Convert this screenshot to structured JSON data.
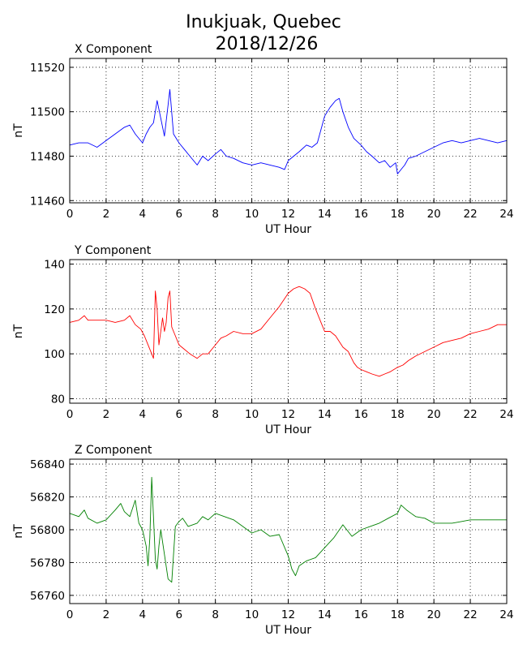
{
  "title": {
    "line1": "Inukjuak, Quebec",
    "line2": "2018/12/26"
  },
  "colors": {
    "x": "#0000ff",
    "y": "#ff0000",
    "z": "#008000"
  },
  "chart_data": [
    {
      "type": "line",
      "title": "X Component",
      "xlabel": "UT Hour",
      "ylabel": "nT",
      "xlim": [
        0,
        24
      ],
      "ylim": [
        11459,
        11524
      ],
      "xticks": [
        0,
        2,
        4,
        6,
        8,
        10,
        12,
        14,
        16,
        18,
        20,
        22,
        24
      ],
      "yticks": [
        11460,
        11480,
        11500,
        11520
      ],
      "grid": true,
      "series": [
        {
          "color": "#0000ff",
          "x": [
            0,
            0.5,
            1,
            1.5,
            2,
            2.5,
            3,
            3.3,
            3.6,
            4,
            4.2,
            4.4,
            4.6,
            4.8,
            5,
            5.2,
            5.4,
            5.5,
            5.7,
            6,
            6.3,
            6.6,
            7,
            7.3,
            7.6,
            8,
            8.3,
            8.6,
            9,
            9.5,
            10,
            10.5,
            11,
            11.5,
            11.8,
            12,
            12.3,
            12.6,
            13,
            13.3,
            13.6,
            14,
            14.3,
            14.6,
            14.8,
            15,
            15.3,
            15.6,
            16,
            16.3,
            16.6,
            17,
            17.3,
            17.6,
            17.9,
            18,
            18.2,
            18.4,
            18.6,
            19,
            19.5,
            20,
            20.5,
            21,
            21.5,
            22,
            22.5,
            23,
            23.5,
            24
          ],
          "y": [
            11485,
            11486,
            11486,
            11484,
            11487,
            11490,
            11493,
            11494,
            11490,
            11486,
            11490,
            11493,
            11495,
            11505,
            11497,
            11489,
            11503,
            11510,
            11490,
            11486,
            11483,
            11480,
            11476,
            11480,
            11478,
            11481,
            11483,
            11480,
            11479,
            11477,
            11476,
            11477,
            11476,
            11475,
            11474,
            11478,
            11480,
            11482,
            11485,
            11484,
            11486,
            11498,
            11502,
            11505,
            11506,
            11500,
            11493,
            11488,
            11485,
            11482,
            11480,
            11477,
            11478,
            11475,
            11477,
            11472,
            11474,
            11476,
            11479,
            11480,
            11482,
            11484,
            11486,
            11487,
            11486,
            11487,
            11488,
            11487,
            11486,
            11487
          ]
        }
      ]
    },
    {
      "type": "line",
      "title": "Y Component",
      "xlabel": "UT Hour",
      "ylabel": "nT",
      "xlim": [
        0,
        24
      ],
      "ylim": [
        78,
        142
      ],
      "xticks": [
        0,
        2,
        4,
        6,
        8,
        10,
        12,
        14,
        16,
        18,
        20,
        22,
        24
      ],
      "yticks": [
        80,
        100,
        120,
        140
      ],
      "grid": true,
      "series": [
        {
          "color": "#ff0000",
          "x": [
            0,
            0.5,
            0.8,
            1,
            1.5,
            2,
            2.5,
            3,
            3.3,
            3.6,
            3.9,
            4.1,
            4.3,
            4.5,
            4.6,
            4.7,
            4.8,
            4.9,
            5,
            5.1,
            5.2,
            5.3,
            5.4,
            5.5,
            5.6,
            5.8,
            6,
            6.3,
            6.6,
            7,
            7.3,
            7.6,
            8,
            8.3,
            8.6,
            9,
            9.5,
            10,
            10.5,
            11,
            11.5,
            12,
            12.3,
            12.6,
            12.9,
            13.2,
            13.5,
            13.8,
            14,
            14.3,
            14.6,
            15,
            15.3,
            15.6,
            15.8,
            16,
            16.3,
            16.6,
            17,
            17.3,
            17.6,
            18,
            18.3,
            18.6,
            19,
            19.5,
            20,
            20.5,
            21,
            21.5,
            22,
            22.5,
            23,
            23.5,
            24
          ],
          "y": [
            114,
            115,
            117,
            115,
            115,
            115,
            114,
            115,
            117,
            113,
            111,
            108,
            104,
            100,
            98,
            128,
            120,
            104,
            110,
            116,
            110,
            114,
            125,
            128,
            112,
            108,
            104,
            102,
            100,
            98,
            100,
            100,
            104,
            107,
            108,
            110,
            109,
            109,
            111,
            116,
            121,
            127,
            129,
            130,
            129,
            127,
            120,
            114,
            110,
            110,
            108,
            103,
            101,
            96,
            94,
            93,
            92,
            91,
            90,
            91,
            92,
            94,
            95,
            97,
            99,
            101,
            103,
            105,
            106,
            107,
            109,
            110,
            111,
            113,
            113
          ]
        }
      ]
    },
    {
      "type": "line",
      "title": "Z Component",
      "xlabel": "UT Hour",
      "ylabel": "nT",
      "xlim": [
        0,
        24
      ],
      "ylim": [
        56755,
        56843
      ],
      "xticks": [
        0,
        2,
        4,
        6,
        8,
        10,
        12,
        14,
        16,
        18,
        20,
        22,
        24
      ],
      "yticks": [
        56760,
        56780,
        56800,
        56820,
        56840
      ],
      "grid": true,
      "series": [
        {
          "color": "#008000",
          "x": [
            0,
            0.5,
            0.8,
            1,
            1.5,
            2,
            2.5,
            2.8,
            3,
            3.3,
            3.6,
            3.8,
            4,
            4.2,
            4.3,
            4.4,
            4.5,
            4.6,
            4.7,
            4.8,
            4.9,
            5,
            5.2,
            5.4,
            5.6,
            5.8,
            6,
            6.2,
            6.5,
            7,
            7.3,
            7.6,
            8,
            8.5,
            9,
            9.5,
            10,
            10.5,
            11,
            11.5,
            12,
            12.2,
            12.4,
            12.6,
            13,
            13.5,
            14,
            14.5,
            15,
            15.5,
            16,
            16.5,
            17,
            17.5,
            18,
            18.2,
            18.5,
            19,
            19.5,
            20,
            20.5,
            21,
            21.5,
            22,
            22.5,
            23,
            23.5,
            24
          ],
          "y": [
            56810,
            56808,
            56812,
            56807,
            56804,
            56806,
            56812,
            56816,
            56811,
            56808,
            56818,
            56804,
            56800,
            56790,
            56778,
            56795,
            56832,
            56808,
            56782,
            56776,
            56790,
            56800,
            56785,
            56770,
            56768,
            56802,
            56805,
            56807,
            56802,
            56804,
            56808,
            56806,
            56810,
            56808,
            56806,
            56802,
            56798,
            56800,
            56796,
            56797,
            56784,
            56776,
            56772,
            56778,
            56781,
            56783,
            56789,
            56795,
            56803,
            56796,
            56800,
            56802,
            56804,
            56807,
            56810,
            56815,
            56812,
            56808,
            56807,
            56804,
            56804,
            56804,
            56805,
            56806,
            56806,
            56806,
            56806,
            56806
          ]
        }
      ]
    }
  ]
}
